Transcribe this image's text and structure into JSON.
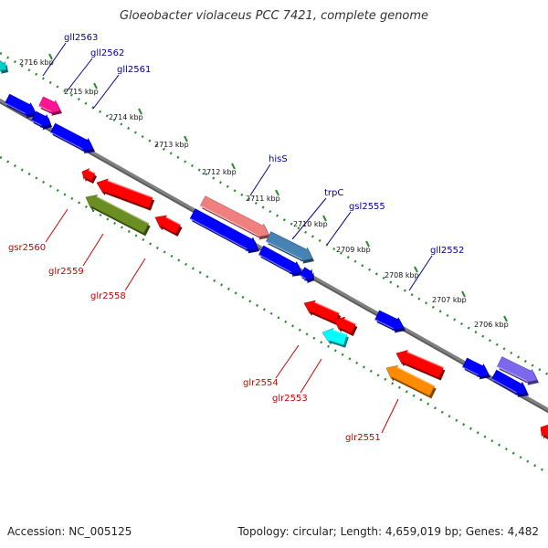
{
  "title": "Gloeobacter violaceus PCC 7421, complete genome",
  "accession_text": "Accession: NC_005125",
  "summary_text": "Topology: circular; Length: 4,659,019 bp; Genes: 4,482",
  "colors": {
    "backbone": "#808080",
    "tick": "#2e8b2e",
    "forward_label": "#00008b",
    "reverse_label": "#cc0000",
    "forward_gene": "#0000ff",
    "reverse_gene": "#ff0000"
  },
  "kbp_labels": [
    "2716 kbp",
    "2715 kbp",
    "2714 kbp",
    "2713 kbp",
    "2712 kbp",
    "2711 kbp",
    "2710 kbp",
    "2709 kbp",
    "2708 kbp",
    "2707 kbp",
    "2706 kbp"
  ],
  "forward_gene_labels": [
    "gll2563",
    "gll2562",
    "gll2561",
    "hisS",
    "trpC",
    "gsl2555",
    "gll2552"
  ],
  "reverse_gene_labels": [
    "gsr2560",
    "glr2559",
    "glr2558",
    "glr2554",
    "glr2553",
    "glr2551"
  ],
  "gene_colors": {
    "gll2563": "#ff1493",
    "hisS": "#f08080",
    "trpC": "#4682b4",
    "glr2558": "#6b8e23",
    "glr2553": "#00ffff",
    "glr2551": "#ff8c00",
    "edge_forward": "#00cccc",
    "edge_violet": "#7b68ee"
  }
}
